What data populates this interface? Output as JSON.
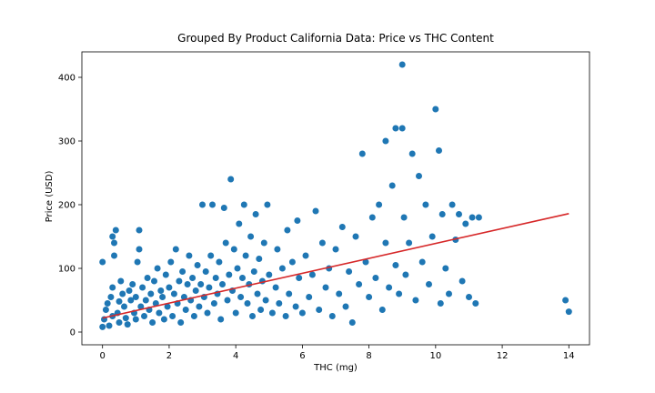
{
  "chart_data": {
    "type": "scatter",
    "title": "Grouped By Product California Data: Price vs THC Content",
    "xlabel": "THC (mg)",
    "ylabel": "Price (USD)",
    "xlim": [
      -0.62,
      14.62
    ],
    "ylim": [
      -20,
      440
    ],
    "xticks": [
      0,
      2,
      4,
      6,
      8,
      10,
      12,
      14
    ],
    "yticks": [
      0,
      100,
      200,
      300,
      400
    ],
    "grid": false,
    "legend": "none",
    "series": [
      {
        "type": "scatter",
        "color": "#1f77b4",
        "points": [
          [
            0.0,
            8
          ],
          [
            0.05,
            20
          ],
          [
            0.1,
            35
          ],
          [
            0.15,
            45
          ],
          [
            0.0,
            110
          ],
          [
            0.2,
            10
          ],
          [
            0.25,
            55
          ],
          [
            0.3,
            25
          ],
          [
            0.3,
            70
          ],
          [
            0.35,
            120
          ],
          [
            0.35,
            140
          ],
          [
            0.4,
            160
          ],
          [
            0.3,
            150
          ],
          [
            0.45,
            30
          ],
          [
            0.5,
            15
          ],
          [
            0.5,
            48
          ],
          [
            0.55,
            80
          ],
          [
            0.6,
            60
          ],
          [
            0.65,
            40
          ],
          [
            0.7,
            22
          ],
          [
            0.75,
            12
          ],
          [
            0.8,
            65
          ],
          [
            0.85,
            50
          ],
          [
            0.9,
            75
          ],
          [
            0.95,
            30
          ],
          [
            1.0,
            55
          ],
          [
            1.0,
            20
          ],
          [
            1.05,
            110
          ],
          [
            1.1,
            130
          ],
          [
            1.1,
            160
          ],
          [
            1.15,
            40
          ],
          [
            1.2,
            70
          ],
          [
            1.25,
            25
          ],
          [
            1.3,
            50
          ],
          [
            1.35,
            85
          ],
          [
            1.4,
            35
          ],
          [
            1.45,
            60
          ],
          [
            1.5,
            15
          ],
          [
            1.55,
            80
          ],
          [
            1.6,
            45
          ],
          [
            1.65,
            100
          ],
          [
            1.7,
            30
          ],
          [
            1.75,
            65
          ],
          [
            1.8,
            55
          ],
          [
            1.85,
            20
          ],
          [
            1.9,
            90
          ],
          [
            1.95,
            40
          ],
          [
            2.0,
            70
          ],
          [
            2.05,
            110
          ],
          [
            2.1,
            25
          ],
          [
            2.15,
            60
          ],
          [
            2.2,
            130
          ],
          [
            2.25,
            45
          ],
          [
            2.3,
            80
          ],
          [
            2.35,
            15
          ],
          [
            2.4,
            95
          ],
          [
            2.45,
            55
          ],
          [
            2.5,
            35
          ],
          [
            2.55,
            75
          ],
          [
            2.6,
            120
          ],
          [
            2.65,
            50
          ],
          [
            2.7,
            85
          ],
          [
            2.75,
            25
          ],
          [
            2.8,
            65
          ],
          [
            2.85,
            105
          ],
          [
            2.9,
            40
          ],
          [
            2.95,
            75
          ],
          [
            3.0,
            200
          ],
          [
            3.05,
            55
          ],
          [
            3.1,
            95
          ],
          [
            3.15,
            30
          ],
          [
            3.2,
            70
          ],
          [
            3.25,
            120
          ],
          [
            3.3,
            200
          ],
          [
            3.35,
            45
          ],
          [
            3.4,
            85
          ],
          [
            3.45,
            60
          ],
          [
            3.5,
            110
          ],
          [
            3.55,
            20
          ],
          [
            3.6,
            75
          ],
          [
            3.65,
            195
          ],
          [
            3.7,
            140
          ],
          [
            3.75,
            50
          ],
          [
            3.8,
            90
          ],
          [
            3.85,
            240
          ],
          [
            3.9,
            65
          ],
          [
            3.95,
            130
          ],
          [
            4.0,
            30
          ],
          [
            4.05,
            100
          ],
          [
            4.1,
            170
          ],
          [
            4.15,
            55
          ],
          [
            4.2,
            85
          ],
          [
            4.25,
            200
          ],
          [
            4.3,
            120
          ],
          [
            4.35,
            45
          ],
          [
            4.4,
            75
          ],
          [
            4.45,
            150
          ],
          [
            4.5,
            25
          ],
          [
            4.55,
            95
          ],
          [
            4.6,
            185
          ],
          [
            4.65,
            60
          ],
          [
            4.7,
            115
          ],
          [
            4.75,
            35
          ],
          [
            4.8,
            80
          ],
          [
            4.85,
            140
          ],
          [
            4.9,
            50
          ],
          [
            4.95,
            200
          ],
          [
            5.0,
            90
          ],
          [
            5.1,
            30
          ],
          [
            5.2,
            70
          ],
          [
            5.25,
            130
          ],
          [
            5.3,
            45
          ],
          [
            5.4,
            100
          ],
          [
            5.5,
            25
          ],
          [
            5.55,
            160
          ],
          [
            5.6,
            60
          ],
          [
            5.7,
            110
          ],
          [
            5.8,
            40
          ],
          [
            5.85,
            175
          ],
          [
            5.9,
            85
          ],
          [
            6.0,
            30
          ],
          [
            6.1,
            120
          ],
          [
            6.2,
            55
          ],
          [
            6.3,
            90
          ],
          [
            6.4,
            190
          ],
          [
            6.5,
            35
          ],
          [
            6.6,
            140
          ],
          [
            6.7,
            70
          ],
          [
            6.8,
            100
          ],
          [
            6.9,
            25
          ],
          [
            7.0,
            130
          ],
          [
            7.1,
            60
          ],
          [
            7.2,
            165
          ],
          [
            7.3,
            40
          ],
          [
            7.4,
            95
          ],
          [
            7.5,
            15
          ],
          [
            7.6,
            150
          ],
          [
            7.7,
            75
          ],
          [
            7.8,
            280
          ],
          [
            7.9,
            110
          ],
          [
            8.0,
            55
          ],
          [
            8.1,
            180
          ],
          [
            8.2,
            85
          ],
          [
            8.3,
            200
          ],
          [
            8.4,
            35
          ],
          [
            8.5,
            140
          ],
          [
            8.5,
            300
          ],
          [
            8.6,
            70
          ],
          [
            8.7,
            230
          ],
          [
            8.8,
            320
          ],
          [
            8.8,
            105
          ],
          [
            8.9,
            60
          ],
          [
            9.0,
            420
          ],
          [
            9.0,
            320
          ],
          [
            9.05,
            180
          ],
          [
            9.1,
            90
          ],
          [
            9.2,
            140
          ],
          [
            9.3,
            280
          ],
          [
            9.4,
            50
          ],
          [
            9.5,
            245
          ],
          [
            9.6,
            110
          ],
          [
            9.7,
            200
          ],
          [
            9.8,
            75
          ],
          [
            9.9,
            150
          ],
          [
            10.0,
            350
          ],
          [
            10.1,
            285
          ],
          [
            10.15,
            45
          ],
          [
            10.2,
            185
          ],
          [
            10.3,
            100
          ],
          [
            10.4,
            60
          ],
          [
            10.5,
            200
          ],
          [
            10.6,
            145
          ],
          [
            10.7,
            185
          ],
          [
            10.8,
            80
          ],
          [
            10.9,
            170
          ],
          [
            11.0,
            55
          ],
          [
            11.1,
            180
          ],
          [
            11.2,
            45
          ],
          [
            11.3,
            180
          ],
          [
            13.9,
            50
          ],
          [
            14.0,
            32
          ]
        ]
      },
      {
        "type": "line",
        "color": "#d62728",
        "points": [
          [
            0.0,
            22
          ],
          [
            14.0,
            186
          ]
        ]
      }
    ]
  }
}
